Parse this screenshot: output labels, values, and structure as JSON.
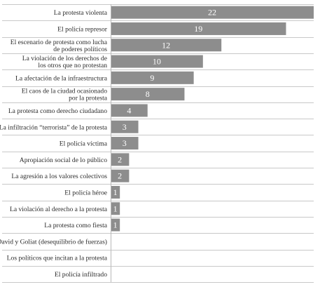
{
  "chart_data": {
    "type": "bar",
    "orientation": "horizontal",
    "title": "",
    "xlabel": "",
    "ylabel": "",
    "xlim": [
      0,
      22
    ],
    "grid": true,
    "legend": "none",
    "bar_color": "#8d8d8d",
    "categories": [
      [
        "La protesta violenta"
      ],
      [
        "El policía represor"
      ],
      [
        "El escenario de protesta como lucha",
        "de poderes políticos"
      ],
      [
        "La violación de los derechos de",
        "los otros que no protestan"
      ],
      [
        "La afectación de la infraestructura"
      ],
      [
        "El caos de la ciudad ocasionado",
        "por la protesta"
      ],
      [
        "La protesta como derecho ciudadano"
      ],
      [
        "La infiltración “terrorista” de la protesta"
      ],
      [
        "El policía víctima"
      ],
      [
        "Apropiación social de lo público"
      ],
      [
        "La agresión a los valores colectivos"
      ],
      [
        "El policía héroe"
      ],
      [
        "La violación al derecho a la protesta"
      ],
      [
        "La protesta como fiesta"
      ],
      [
        "David y Goliat (desequilibrio de fuerzas)"
      ],
      [
        "Los políticos que incitan a la protesta"
      ],
      [
        "El policía infiltrado"
      ]
    ],
    "values": [
      22,
      19,
      12,
      10,
      9,
      8,
      4,
      3,
      3,
      2,
      2,
      1,
      1,
      1,
      0,
      0,
      0
    ],
    "value_labels": [
      "22",
      "19",
      "12",
      "10",
      "9",
      "8",
      "4",
      "3",
      "3",
      "2",
      "2",
      "1",
      "1",
      "1",
      "",
      "",
      ""
    ]
  }
}
